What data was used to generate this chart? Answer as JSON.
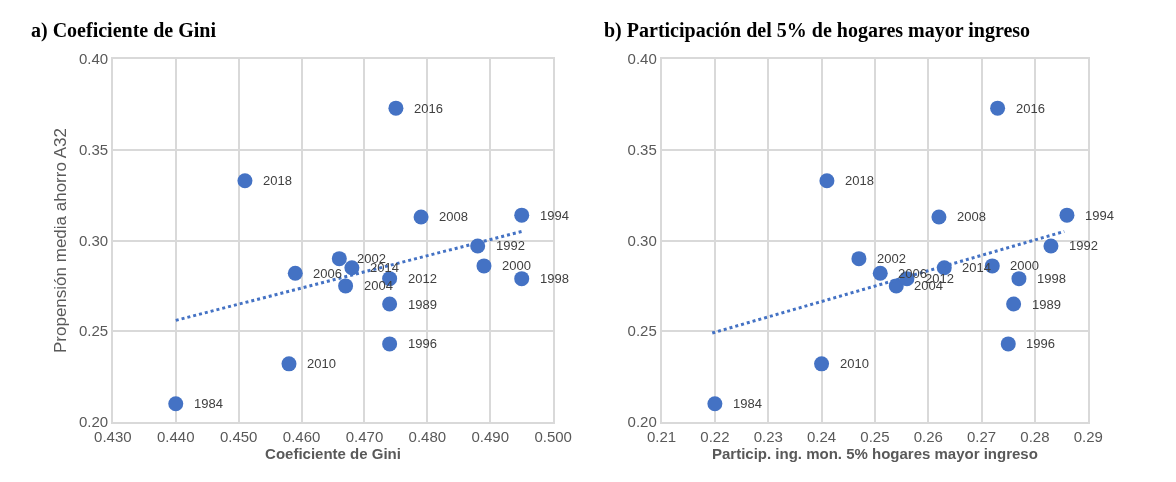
{
  "chart_data": [
    {
      "type": "scatter",
      "title": "a) Coeficiente de Gini",
      "xlabel": "Coeficiente de Gini",
      "ylabel": "Propensión media ahorro A32",
      "xlim": [
        0.43,
        0.5
      ],
      "xticks": [
        {
          "value": 0.43,
          "label": "0.430"
        },
        {
          "value": 0.44,
          "label": "0.440"
        },
        {
          "value": 0.45,
          "label": "0.450"
        },
        {
          "value": 0.46,
          "label": "0.460"
        },
        {
          "value": 0.47,
          "label": "0.470"
        },
        {
          "value": 0.48,
          "label": "0.480"
        },
        {
          "value": 0.49,
          "label": "0.490"
        },
        {
          "value": 0.5,
          "label": "0.500"
        }
      ],
      "ylim": [
        0.2,
        0.4
      ],
      "yticks": [
        {
          "value": 0.2,
          "label": "0.20"
        },
        {
          "value": 0.25,
          "label": "0.25"
        },
        {
          "value": 0.3,
          "label": "0.30"
        },
        {
          "value": 0.35,
          "label": "0.35"
        },
        {
          "value": 0.4,
          "label": "0.40"
        }
      ],
      "grid": true,
      "marker": "circle",
      "series": [
        {
          "color": "#4472c4",
          "x": [
            0.44,
            0.474,
            0.488,
            0.495,
            0.474,
            0.495,
            0.489,
            0.466,
            0.467,
            0.459,
            0.479,
            0.458,
            0.474,
            0.468,
            0.475,
            0.451
          ],
          "values": [
            0.21,
            0.265,
            0.297,
            0.314,
            0.243,
            0.279,
            0.286,
            0.29,
            0.275,
            0.282,
            0.313,
            0.232,
            0.279,
            0.285,
            0.373,
            0.333
          ]
        },
        {
          "type": "line",
          "color": "#4472c4",
          "line_style": "dotted",
          "marker": "none",
          "x": [
            0.44,
            0.495
          ],
          "values": [
            0.256,
            0.305
          ]
        }
      ],
      "annotations": [
        {
          "text": "1984",
          "x": 0.44,
          "y": 0.21
        },
        {
          "text": "1989",
          "x": 0.474,
          "y": 0.265
        },
        {
          "text": "1992",
          "x": 0.488,
          "y": 0.297
        },
        {
          "text": "1994",
          "x": 0.495,
          "y": 0.314
        },
        {
          "text": "1996",
          "x": 0.474,
          "y": 0.243
        },
        {
          "text": "1998",
          "x": 0.495,
          "y": 0.279
        },
        {
          "text": "2000",
          "x": 0.489,
          "y": 0.286
        },
        {
          "text": "2002",
          "x": 0.466,
          "y": 0.29
        },
        {
          "text": "2004",
          "x": 0.467,
          "y": 0.275
        },
        {
          "text": "2006",
          "x": 0.459,
          "y": 0.282
        },
        {
          "text": "2008",
          "x": 0.479,
          "y": 0.313
        },
        {
          "text": "2010",
          "x": 0.458,
          "y": 0.232
        },
        {
          "text": "2012",
          "x": 0.474,
          "y": 0.279
        },
        {
          "text": "2014",
          "x": 0.468,
          "y": 0.285
        },
        {
          "text": "2016",
          "x": 0.475,
          "y": 0.373
        },
        {
          "text": "2018",
          "x": 0.451,
          "y": 0.333
        }
      ]
    },
    {
      "type": "scatter",
      "title": "b) Participación del 5% de hogares mayor ingreso",
      "xlabel": "Particip. ing. mon. 5% hogares mayor ingreso",
      "xlim": [
        0.21,
        0.29
      ],
      "xticks": [
        0.21,
        0.22,
        0.23,
        0.24,
        0.25,
        0.26,
        0.27,
        0.28,
        0.29
      ],
      "ylim": [
        0.2,
        0.4
      ],
      "yticks": [
        {
          "value": 0.2,
          "label": "0.20"
        },
        {
          "value": 0.25,
          "label": "0.25"
        },
        {
          "value": 0.3,
          "label": "0.30"
        },
        {
          "value": 0.35,
          "label": "0.35"
        },
        {
          "value": 0.4,
          "label": "0.40"
        }
      ],
      "grid": true,
      "marker": "circle",
      "series": [
        {
          "color": "#4472c4",
          "x": [
            0.22,
            0.276,
            0.283,
            0.286,
            0.275,
            0.277,
            0.272,
            0.247,
            0.254,
            0.251,
            0.262,
            0.24,
            0.256,
            0.263,
            0.273,
            0.241
          ],
          "values": [
            0.21,
            0.265,
            0.297,
            0.314,
            0.243,
            0.279,
            0.286,
            0.29,
            0.275,
            0.282,
            0.313,
            0.232,
            0.279,
            0.285,
            0.373,
            0.333
          ]
        },
        {
          "type": "line",
          "color": "#4472c4",
          "line_style": "dotted",
          "marker": "none",
          "x": [
            0.2195,
            0.2855
          ],
          "values": [
            0.249,
            0.305
          ]
        }
      ],
      "annotations": [
        {
          "text": "1984",
          "x": 0.22,
          "y": 0.21
        },
        {
          "text": "1989",
          "x": 0.276,
          "y": 0.265
        },
        {
          "text": "1992",
          "x": 0.283,
          "y": 0.297
        },
        {
          "text": "1994",
          "x": 0.286,
          "y": 0.314
        },
        {
          "text": "1996",
          "x": 0.275,
          "y": 0.243
        },
        {
          "text": "1998",
          "x": 0.277,
          "y": 0.279
        },
        {
          "text": "2000",
          "x": 0.272,
          "y": 0.286
        },
        {
          "text": "2002",
          "x": 0.247,
          "y": 0.29
        },
        {
          "text": "2004",
          "x": 0.254,
          "y": 0.275
        },
        {
          "text": "2006",
          "x": 0.251,
          "y": 0.282
        },
        {
          "text": "2008",
          "x": 0.262,
          "y": 0.313
        },
        {
          "text": "2010",
          "x": 0.24,
          "y": 0.232
        },
        {
          "text": "2012",
          "x": 0.256,
          "y": 0.279
        },
        {
          "text": "2014",
          "x": 0.263,
          "y": 0.285
        },
        {
          "text": "2016",
          "x": 0.273,
          "y": 0.373
        },
        {
          "text": "2018",
          "x": 0.241,
          "y": 0.333
        }
      ]
    }
  ]
}
